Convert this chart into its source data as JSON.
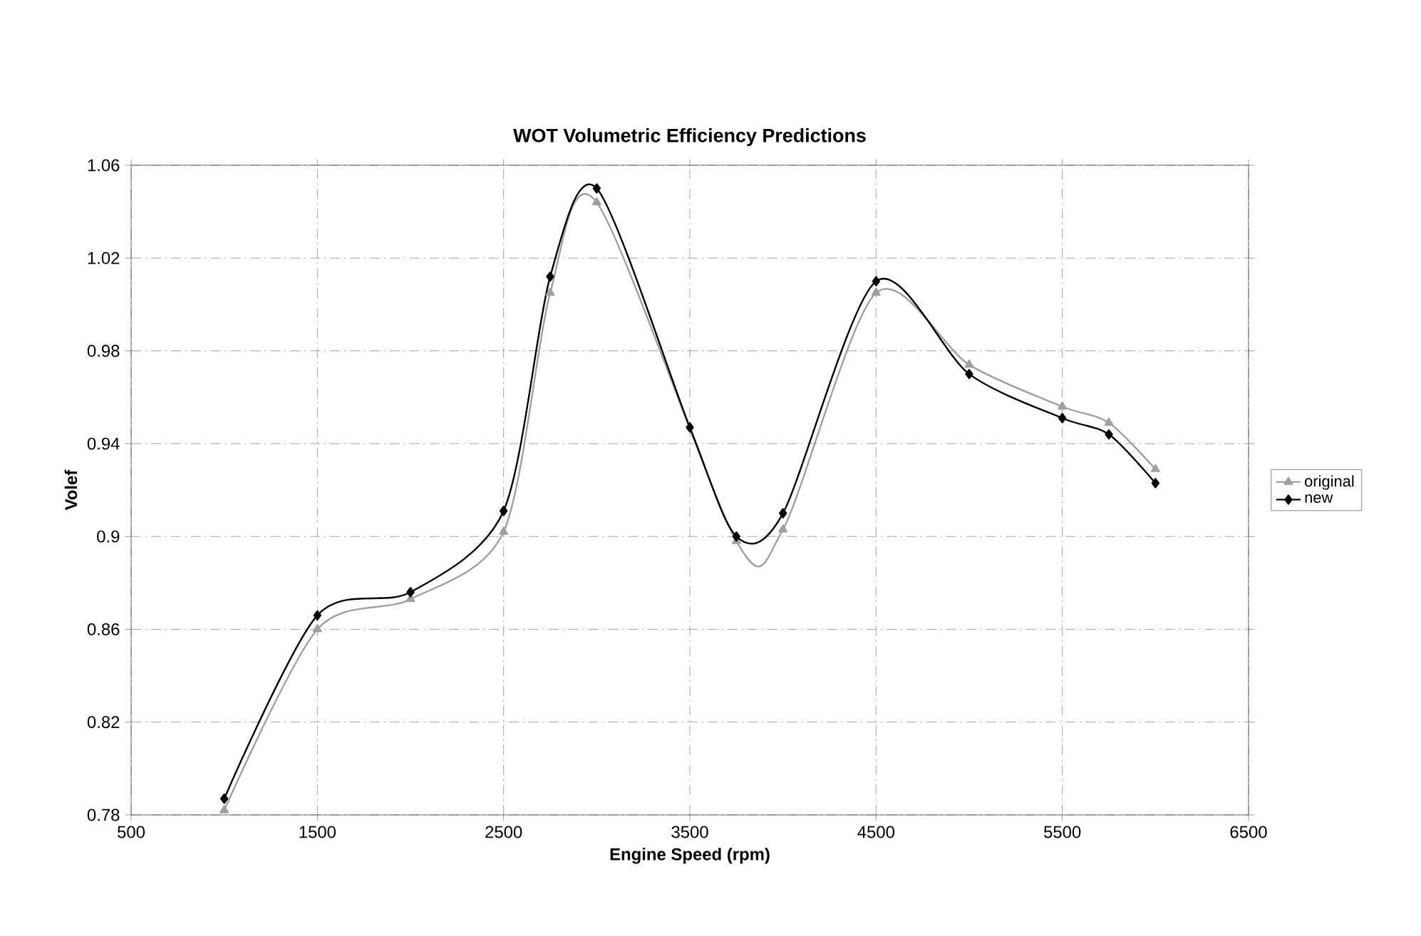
{
  "chart_data": {
    "type": "line",
    "title": "WOT Volumetric Efficiency Predictions",
    "xlabel": "Engine Speed (rpm)",
    "ylabel": "Volef",
    "xlim": [
      500,
      6500
    ],
    "xticks": [
      500,
      1500,
      2500,
      3500,
      4500,
      5500,
      6500
    ],
    "ylim": [
      0.78,
      1.06
    ],
    "yticks": [
      0.78,
      0.82,
      0.86,
      0.9,
      0.94,
      0.98,
      1.02,
      1.06
    ],
    "grid": true,
    "legend": "right",
    "line_style": "solid",
    "series": [
      {
        "name": "original",
        "color": "#a0a0a0",
        "marker": "triangle",
        "x": [
          1000,
          1500,
          2000,
          2500,
          2750,
          3000,
          3500,
          3750,
          4000,
          4500,
          5000,
          5500,
          5750,
          6000
        ],
        "values": [
          0.782,
          0.86,
          0.873,
          0.902,
          1.005,
          1.044,
          null,
          0.898,
          0.903,
          1.005,
          0.974,
          0.956,
          0.949,
          0.929
        ]
      },
      {
        "name": "new",
        "color": "#000000",
        "marker": "diamond",
        "x": [
          1000,
          1500,
          2000,
          2500,
          2750,
          3000,
          3500,
          3750,
          4000,
          4500,
          5000,
          5500,
          5750,
          6000
        ],
        "values": [
          0.787,
          0.866,
          0.876,
          0.911,
          1.012,
          1.05,
          0.947,
          0.9,
          0.91,
          1.01,
          0.97,
          0.951,
          0.944,
          0.923
        ]
      }
    ]
  }
}
